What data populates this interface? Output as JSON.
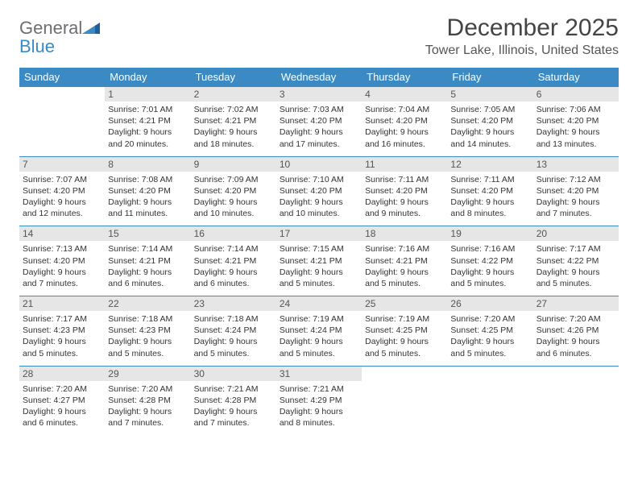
{
  "logo": {
    "general": "General",
    "blue": "Blue",
    "accent_color": "#3b8ac4",
    "gray_color": "#6d6e71"
  },
  "title": "December 2025",
  "location": "Tower Lake, Illinois, United States",
  "day_headers": [
    "Sunday",
    "Monday",
    "Tuesday",
    "Wednesday",
    "Thursday",
    "Friday",
    "Saturday"
  ],
  "colors": {
    "header_bg": "#3b8ac4",
    "header_text": "#ffffff",
    "daynum_bg": "#e6e6e6",
    "daynum_text": "#555555",
    "border": "#3b8ac4",
    "body_text": "#333333"
  },
  "weeks": [
    [
      null,
      {
        "n": "1",
        "sunrise": "Sunrise: 7:01 AM",
        "sunset": "Sunset: 4:21 PM",
        "day1": "Daylight: 9 hours",
        "day2": "and 20 minutes."
      },
      {
        "n": "2",
        "sunrise": "Sunrise: 7:02 AM",
        "sunset": "Sunset: 4:21 PM",
        "day1": "Daylight: 9 hours",
        "day2": "and 18 minutes."
      },
      {
        "n": "3",
        "sunrise": "Sunrise: 7:03 AM",
        "sunset": "Sunset: 4:20 PM",
        "day1": "Daylight: 9 hours",
        "day2": "and 17 minutes."
      },
      {
        "n": "4",
        "sunrise": "Sunrise: 7:04 AM",
        "sunset": "Sunset: 4:20 PM",
        "day1": "Daylight: 9 hours",
        "day2": "and 16 minutes."
      },
      {
        "n": "5",
        "sunrise": "Sunrise: 7:05 AM",
        "sunset": "Sunset: 4:20 PM",
        "day1": "Daylight: 9 hours",
        "day2": "and 14 minutes."
      },
      {
        "n": "6",
        "sunrise": "Sunrise: 7:06 AM",
        "sunset": "Sunset: 4:20 PM",
        "day1": "Daylight: 9 hours",
        "day2": "and 13 minutes."
      }
    ],
    [
      {
        "n": "7",
        "sunrise": "Sunrise: 7:07 AM",
        "sunset": "Sunset: 4:20 PM",
        "day1": "Daylight: 9 hours",
        "day2": "and 12 minutes."
      },
      {
        "n": "8",
        "sunrise": "Sunrise: 7:08 AM",
        "sunset": "Sunset: 4:20 PM",
        "day1": "Daylight: 9 hours",
        "day2": "and 11 minutes."
      },
      {
        "n": "9",
        "sunrise": "Sunrise: 7:09 AM",
        "sunset": "Sunset: 4:20 PM",
        "day1": "Daylight: 9 hours",
        "day2": "and 10 minutes."
      },
      {
        "n": "10",
        "sunrise": "Sunrise: 7:10 AM",
        "sunset": "Sunset: 4:20 PM",
        "day1": "Daylight: 9 hours",
        "day2": "and 10 minutes."
      },
      {
        "n": "11",
        "sunrise": "Sunrise: 7:11 AM",
        "sunset": "Sunset: 4:20 PM",
        "day1": "Daylight: 9 hours",
        "day2": "and 9 minutes."
      },
      {
        "n": "12",
        "sunrise": "Sunrise: 7:11 AM",
        "sunset": "Sunset: 4:20 PM",
        "day1": "Daylight: 9 hours",
        "day2": "and 8 minutes."
      },
      {
        "n": "13",
        "sunrise": "Sunrise: 7:12 AM",
        "sunset": "Sunset: 4:20 PM",
        "day1": "Daylight: 9 hours",
        "day2": "and 7 minutes."
      }
    ],
    [
      {
        "n": "14",
        "sunrise": "Sunrise: 7:13 AM",
        "sunset": "Sunset: 4:20 PM",
        "day1": "Daylight: 9 hours",
        "day2": "and 7 minutes."
      },
      {
        "n": "15",
        "sunrise": "Sunrise: 7:14 AM",
        "sunset": "Sunset: 4:21 PM",
        "day1": "Daylight: 9 hours",
        "day2": "and 6 minutes."
      },
      {
        "n": "16",
        "sunrise": "Sunrise: 7:14 AM",
        "sunset": "Sunset: 4:21 PM",
        "day1": "Daylight: 9 hours",
        "day2": "and 6 minutes."
      },
      {
        "n": "17",
        "sunrise": "Sunrise: 7:15 AM",
        "sunset": "Sunset: 4:21 PM",
        "day1": "Daylight: 9 hours",
        "day2": "and 5 minutes."
      },
      {
        "n": "18",
        "sunrise": "Sunrise: 7:16 AM",
        "sunset": "Sunset: 4:21 PM",
        "day1": "Daylight: 9 hours",
        "day2": "and 5 minutes."
      },
      {
        "n": "19",
        "sunrise": "Sunrise: 7:16 AM",
        "sunset": "Sunset: 4:22 PM",
        "day1": "Daylight: 9 hours",
        "day2": "and 5 minutes."
      },
      {
        "n": "20",
        "sunrise": "Sunrise: 7:17 AM",
        "sunset": "Sunset: 4:22 PM",
        "day1": "Daylight: 9 hours",
        "day2": "and 5 minutes."
      }
    ],
    [
      {
        "n": "21",
        "sunrise": "Sunrise: 7:17 AM",
        "sunset": "Sunset: 4:23 PM",
        "day1": "Daylight: 9 hours",
        "day2": "and 5 minutes."
      },
      {
        "n": "22",
        "sunrise": "Sunrise: 7:18 AM",
        "sunset": "Sunset: 4:23 PM",
        "day1": "Daylight: 9 hours",
        "day2": "and 5 minutes."
      },
      {
        "n": "23",
        "sunrise": "Sunrise: 7:18 AM",
        "sunset": "Sunset: 4:24 PM",
        "day1": "Daylight: 9 hours",
        "day2": "and 5 minutes."
      },
      {
        "n": "24",
        "sunrise": "Sunrise: 7:19 AM",
        "sunset": "Sunset: 4:24 PM",
        "day1": "Daylight: 9 hours",
        "day2": "and 5 minutes."
      },
      {
        "n": "25",
        "sunrise": "Sunrise: 7:19 AM",
        "sunset": "Sunset: 4:25 PM",
        "day1": "Daylight: 9 hours",
        "day2": "and 5 minutes."
      },
      {
        "n": "26",
        "sunrise": "Sunrise: 7:20 AM",
        "sunset": "Sunset: 4:25 PM",
        "day1": "Daylight: 9 hours",
        "day2": "and 5 minutes."
      },
      {
        "n": "27",
        "sunrise": "Sunrise: 7:20 AM",
        "sunset": "Sunset: 4:26 PM",
        "day1": "Daylight: 9 hours",
        "day2": "and 6 minutes."
      }
    ],
    [
      {
        "n": "28",
        "sunrise": "Sunrise: 7:20 AM",
        "sunset": "Sunset: 4:27 PM",
        "day1": "Daylight: 9 hours",
        "day2": "and 6 minutes."
      },
      {
        "n": "29",
        "sunrise": "Sunrise: 7:20 AM",
        "sunset": "Sunset: 4:28 PM",
        "day1": "Daylight: 9 hours",
        "day2": "and 7 minutes."
      },
      {
        "n": "30",
        "sunrise": "Sunrise: 7:21 AM",
        "sunset": "Sunset: 4:28 PM",
        "day1": "Daylight: 9 hours",
        "day2": "and 7 minutes."
      },
      {
        "n": "31",
        "sunrise": "Sunrise: 7:21 AM",
        "sunset": "Sunset: 4:29 PM",
        "day1": "Daylight: 9 hours",
        "day2": "and 8 minutes."
      },
      null,
      null,
      null
    ]
  ]
}
